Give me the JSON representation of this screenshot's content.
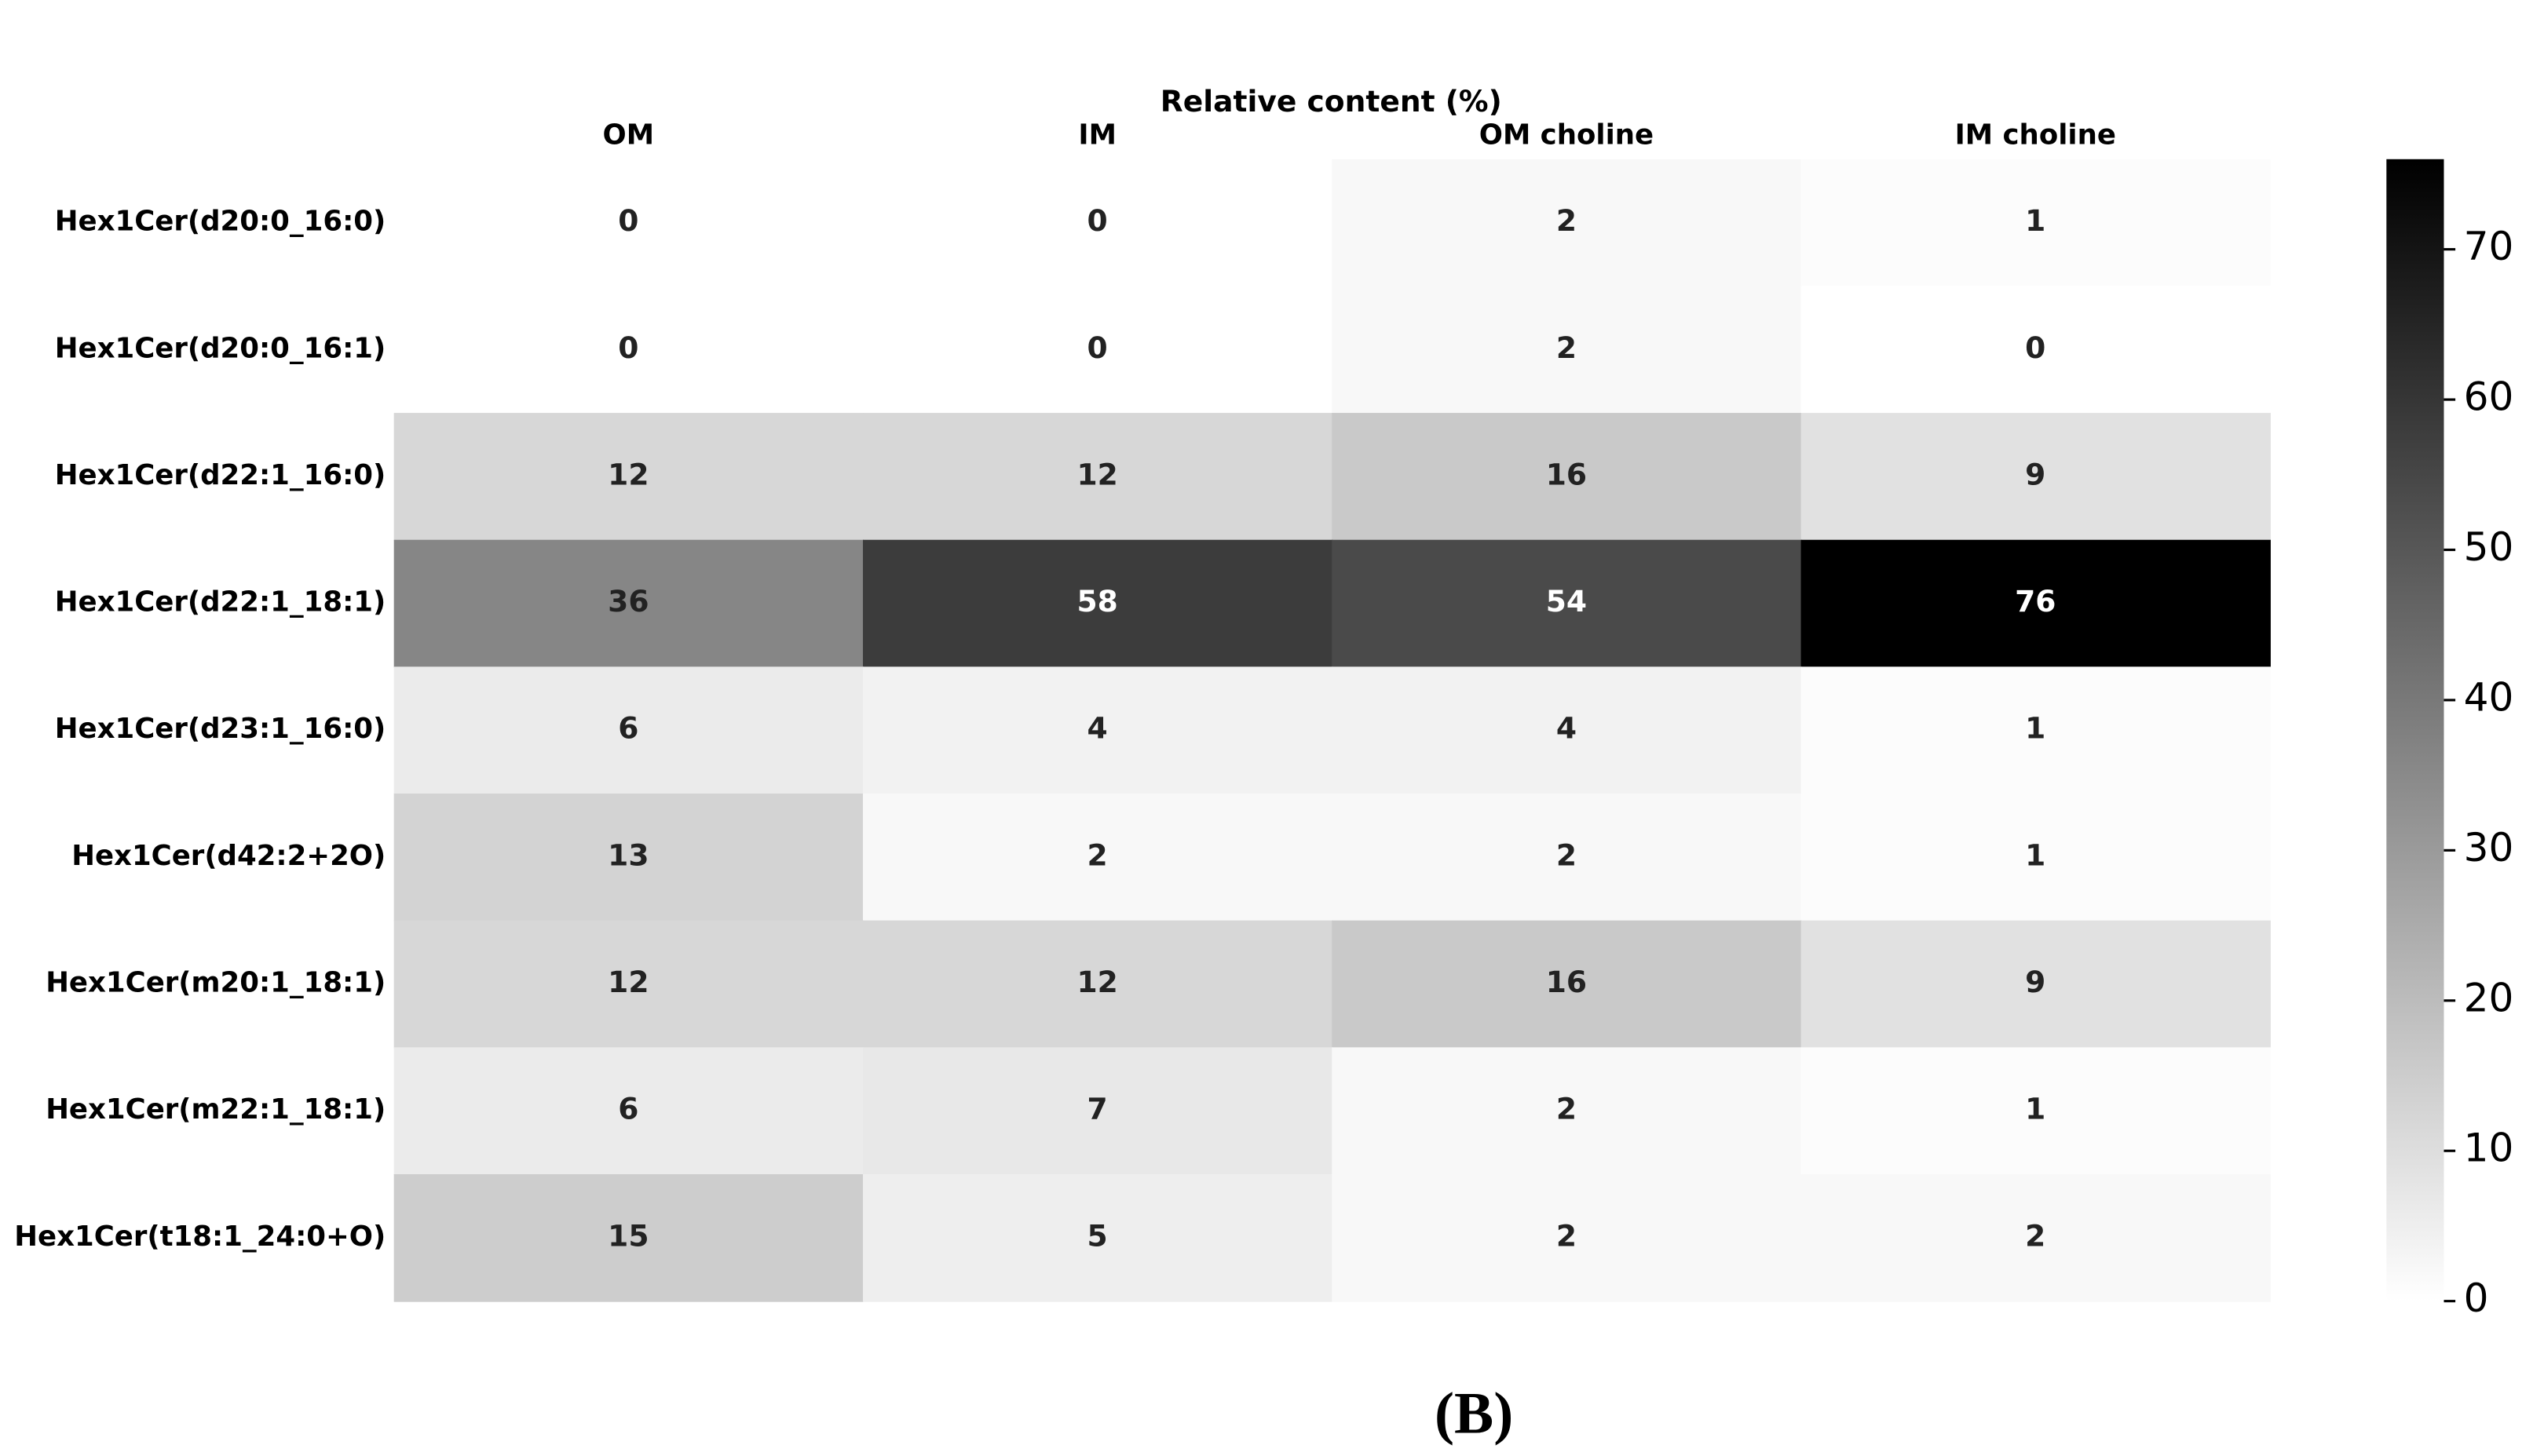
{
  "chart_data": {
    "type": "heatmap",
    "title": "Relative content (%)",
    "columns": [
      "OM",
      "IM",
      "OM choline",
      "IM choline"
    ],
    "rows": [
      "Hex1Cer(d20:0_16:0)",
      "Hex1Cer(d20:0_16:1)",
      "Hex1Cer(d22:1_16:0)",
      "Hex1Cer(d22:1_18:1)",
      "Hex1Cer(d23:1_16:0)",
      "Hex1Cer(d42:2+2O)",
      "Hex1Cer(m20:1_18:1)",
      "Hex1Cer(m22:1_18:1)",
      "Hex1Cer(t18:1_24:0+O)"
    ],
    "values": [
      [
        0,
        0,
        2,
        1
      ],
      [
        0,
        0,
        2,
        0
      ],
      [
        12,
        12,
        16,
        9
      ],
      [
        36,
        58,
        54,
        76
      ],
      [
        6,
        4,
        4,
        1
      ],
      [
        13,
        2,
        2,
        1
      ],
      [
        12,
        12,
        16,
        9
      ],
      [
        6,
        7,
        2,
        1
      ],
      [
        15,
        5,
        2,
        2
      ]
    ],
    "colormap": "Greys",
    "zlim": [
      0,
      76
    ],
    "zticks": [
      0,
      10,
      20,
      30,
      40,
      50,
      60,
      70
    ]
  },
  "caption": "(B)"
}
